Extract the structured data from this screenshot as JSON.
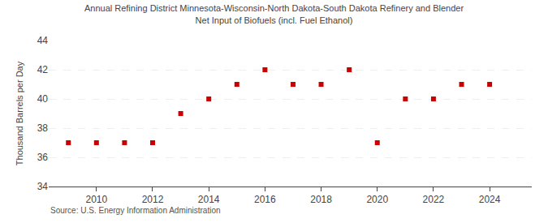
{
  "chart_data": {
    "type": "scatter",
    "title": "Annual Refining District Minnesota-Wisconsin-North Dakota-South Dakota Refinery and Blender",
    "subtitle": "Net Input of Biofuels (incl. Fuel Ethanol)",
    "ylabel": "Thousand Barrels per Day",
    "annotations": [
      "Source: U.S. Energy Information Administration"
    ],
    "x": [
      2009,
      2010,
      2011,
      2012,
      2013,
      2014,
      2015,
      2016,
      2017,
      2018,
      2019,
      2020,
      2021,
      2022,
      2023,
      2024
    ],
    "values": [
      37,
      37,
      37,
      37,
      39,
      40,
      41,
      42,
      41,
      41,
      42,
      37,
      40,
      40,
      41,
      41
    ],
    "color": "#cc0000",
    "marker": "square",
    "xlim": [
      2008.3,
      2025.5
    ],
    "xticks": [
      2010,
      2012,
      2014,
      2016,
      2018,
      2020,
      2022,
      2024
    ],
    "ylim": [
      34,
      44
    ],
    "yticks": [
      34,
      36,
      38,
      40,
      42,
      44
    ],
    "grid": true
  }
}
